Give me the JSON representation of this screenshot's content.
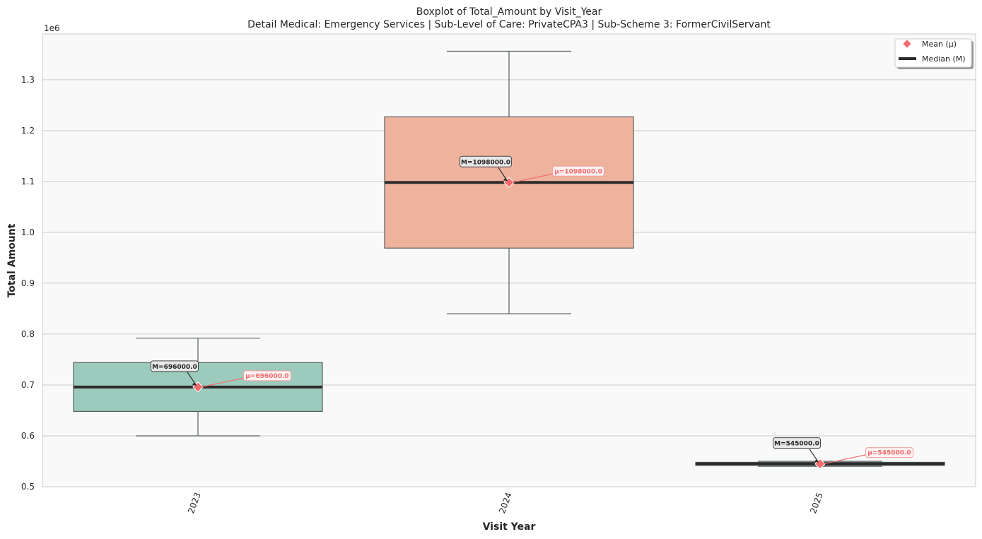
{
  "chart_data": {
    "type": "boxplot",
    "title": "Boxplot of Total_Amount by Visit_Year",
    "subtitle": "Detail Medical: Emergency Services | Sub-Level of Care: PrivateCPA3 | Sub-Scheme 3: FormerCivilServant",
    "xlabel": "Visit Year",
    "ylabel": "Total Amount",
    "y_offset_label": "1e6",
    "ylim": [
      0.5,
      1.39
    ],
    "yticks": [
      0.5,
      0.6,
      0.7,
      0.8,
      0.9,
      1.0,
      1.1,
      1.2,
      1.3
    ],
    "ytick_labels": [
      "0.5",
      "0.6",
      "0.7",
      "0.8",
      "0.9",
      "1.0",
      "1.1",
      "1.2",
      "1.3"
    ],
    "grid": true,
    "legend_position": "top-right",
    "legend": [
      {
        "label": "Mean (μ)",
        "marker": "diamond",
        "color": "#f36b6b"
      },
      {
        "label": "Median (M)",
        "marker": "line",
        "color": "#2b2b2b"
      }
    ],
    "categories": [
      "2023",
      "2024",
      "2025"
    ],
    "boxes": [
      {
        "category": "2023",
        "whisker_low": 0.6,
        "q1": 0.648,
        "median": 0.696,
        "q3": 0.744,
        "whisker_high": 0.792,
        "mean": 0.696,
        "color": "#9ccabd",
        "median_label": "M=696000.0",
        "mean_label": "μ=696000.0"
      },
      {
        "category": "2024",
        "whisker_low": 0.84,
        "q1": 0.969,
        "median": 1.098,
        "q3": 1.227,
        "whisker_high": 1.356,
        "mean": 1.098,
        "color": "#eeb39d",
        "median_label": "M=1098000.0",
        "mean_label": "μ=1098000.0"
      },
      {
        "category": "2025",
        "whisker_low": 0.54,
        "q1": 0.542,
        "median": 0.545,
        "q3": 0.548,
        "whisker_high": 0.55,
        "mean": 0.545,
        "color": "#8da0cb",
        "median_label": "M=545000.0",
        "mean_label": "μ=545000.0"
      }
    ],
    "colors": {
      "mean": "#f36b6b",
      "median": "#2b2b2b",
      "whisker": "#555f60",
      "plot_bg": "#f9f9f9",
      "grid": "#cccccc"
    }
  }
}
